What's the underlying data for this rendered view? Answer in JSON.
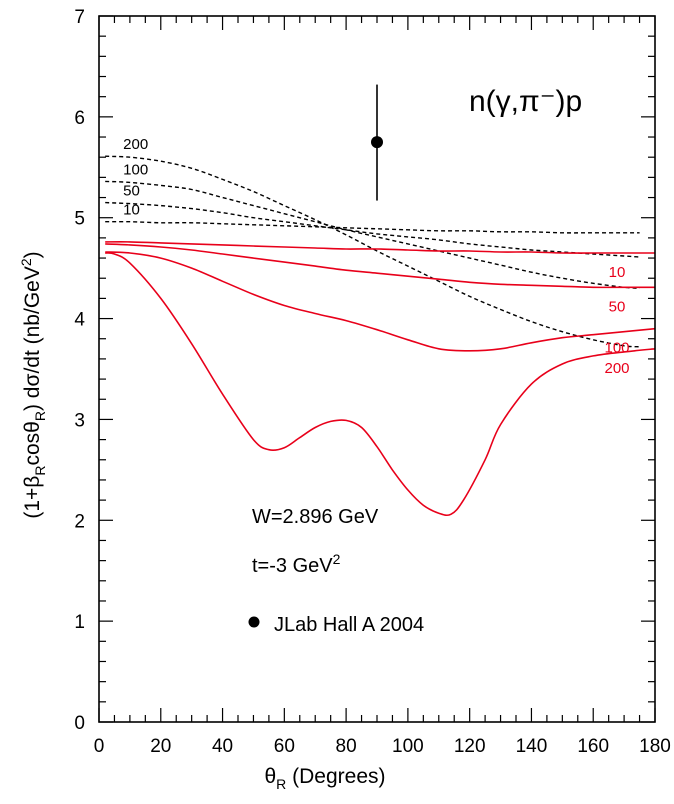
{
  "chart_data": {
    "type": "line",
    "title": "n(γ,π⁻)p",
    "xlabel": "θR (Degrees)",
    "ylabel": "(1+βRcosθR) dσ/dt (nb/GeV2)",
    "xlim": [
      0,
      180
    ],
    "ylim": [
      0,
      7
    ],
    "x_ticks": [
      "0",
      "20",
      "40",
      "60",
      "80",
      "100",
      "120",
      "140",
      "160",
      "180"
    ],
    "y_ticks": [
      "0",
      "1",
      "2",
      "3",
      "4",
      "5",
      "6",
      "7"
    ],
    "annotations": [
      "W=2.896 GeV",
      "t=-3 GeV²"
    ],
    "legend": {
      "marker": "filled-circle",
      "label": "JLab Hall A 2004",
      "placement": "lower-middle"
    },
    "data_points": [
      {
        "x": 90,
        "y": 5.75,
        "yerr_low": 0.58,
        "yerr_high": 0.57
      }
    ],
    "series": [
      {
        "name": "200",
        "style": "dashed",
        "color": "#000000",
        "x": [
          2,
          10,
          20,
          30,
          40,
          50,
          60,
          70,
          80,
          90,
          100,
          110,
          120,
          130,
          140,
          150,
          160,
          170,
          175
        ],
        "y": [
          5.61,
          5.6,
          5.56,
          5.49,
          5.38,
          5.26,
          5.12,
          4.98,
          4.83,
          4.67,
          4.52,
          4.37,
          4.22,
          4.09,
          3.97,
          3.87,
          3.79,
          3.73,
          3.72
        ]
      },
      {
        "name": "100",
        "style": "dashed",
        "color": "#000000",
        "x": [
          2,
          10,
          20,
          30,
          40,
          50,
          60,
          70,
          80,
          90,
          100,
          110,
          120,
          130,
          140,
          150,
          160,
          170,
          175
        ],
        "y": [
          5.36,
          5.35,
          5.32,
          5.28,
          5.2,
          5.12,
          5.04,
          4.96,
          4.88,
          4.81,
          4.74,
          4.67,
          4.6,
          4.53,
          4.46,
          4.4,
          4.35,
          4.31,
          4.3
        ]
      },
      {
        "name": "50",
        "style": "dashed",
        "color": "#000000",
        "x": [
          2,
          10,
          20,
          30,
          40,
          50,
          60,
          70,
          80,
          90,
          100,
          110,
          120,
          130,
          140,
          150,
          160,
          170,
          175
        ],
        "y": [
          5.15,
          5.14,
          5.12,
          5.09,
          5.05,
          5.0,
          4.96,
          4.92,
          4.88,
          4.84,
          4.81,
          4.78,
          4.74,
          4.71,
          4.68,
          4.66,
          4.64,
          4.62,
          4.61
        ]
      },
      {
        "name": "10",
        "style": "dashed",
        "color": "#000000",
        "x": [
          2,
          10,
          20,
          30,
          40,
          50,
          60,
          70,
          80,
          90,
          100,
          110,
          120,
          130,
          140,
          150,
          160,
          170,
          175
        ],
        "y": [
          4.96,
          4.96,
          4.95,
          4.95,
          4.94,
          4.93,
          4.92,
          4.91,
          4.9,
          4.89,
          4.88,
          4.87,
          4.87,
          4.86,
          4.86,
          4.85,
          4.85,
          4.85,
          4.85
        ]
      },
      {
        "name": "10",
        "style": "solid",
        "color": "#e8001a",
        "x": [
          2,
          10,
          20,
          30,
          40,
          50,
          60,
          70,
          80,
          90,
          100,
          110,
          120,
          130,
          140,
          150,
          160,
          170,
          180
        ],
        "y": [
          4.76,
          4.76,
          4.75,
          4.74,
          4.73,
          4.72,
          4.71,
          4.7,
          4.69,
          4.69,
          4.68,
          4.67,
          4.67,
          4.66,
          4.66,
          4.65,
          4.65,
          4.65,
          4.65
        ]
      },
      {
        "name": "50",
        "style": "solid",
        "color": "#e8001a",
        "x": [
          2,
          10,
          20,
          30,
          40,
          50,
          60,
          70,
          80,
          90,
          100,
          110,
          120,
          130,
          140,
          150,
          160,
          170,
          180
        ],
        "y": [
          4.74,
          4.73,
          4.71,
          4.68,
          4.64,
          4.6,
          4.56,
          4.52,
          4.48,
          4.45,
          4.42,
          4.39,
          4.36,
          4.34,
          4.33,
          4.32,
          4.31,
          4.31,
          4.31
        ]
      },
      {
        "name": "100",
        "style": "solid",
        "color": "#e8001a",
        "x": [
          2,
          10,
          20,
          30,
          40,
          50,
          60,
          70,
          80,
          90,
          100,
          110,
          120,
          130,
          140,
          150,
          160,
          170,
          180
        ],
        "y": [
          4.66,
          4.65,
          4.6,
          4.5,
          4.37,
          4.24,
          4.13,
          4.05,
          3.98,
          3.89,
          3.79,
          3.7,
          3.68,
          3.7,
          3.76,
          3.81,
          3.84,
          3.87,
          3.9
        ]
      },
      {
        "name": "200",
        "style": "solid",
        "color": "#e8001a",
        "x": [
          2,
          5,
          10,
          20,
          30,
          40,
          50,
          55,
          60,
          65,
          70,
          75,
          80,
          85,
          90,
          95,
          100,
          105,
          110,
          114,
          118,
          125,
          130,
          140,
          150,
          160,
          170,
          180
        ],
        "y": [
          4.65,
          4.64,
          4.55,
          4.2,
          3.75,
          3.25,
          2.8,
          2.7,
          2.72,
          2.82,
          2.92,
          2.98,
          2.99,
          2.92,
          2.73,
          2.5,
          2.3,
          2.15,
          2.07,
          2.06,
          2.2,
          2.6,
          2.95,
          3.35,
          3.55,
          3.63,
          3.67,
          3.7
        ]
      }
    ]
  }
}
